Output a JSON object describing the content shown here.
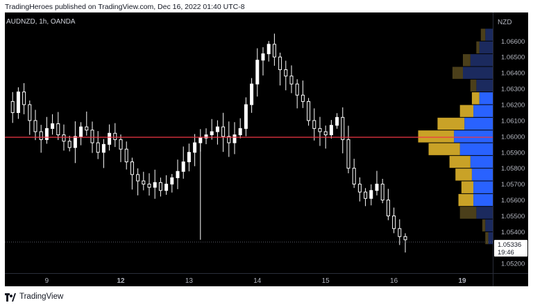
{
  "header": {
    "published": "TradingHeroes published on TradingView.com, Dec 16, 2022 01:40 UTC-8"
  },
  "chart_header": {
    "symbol": "AUDNZD, 1h, OANDA"
  },
  "footer": {
    "brand": "TradingView"
  },
  "colors": {
    "background": "#000000",
    "candle": "#ffffff",
    "price_line": "#f23645",
    "vp_up": "#2962ff",
    "vp_down": "#c9a227",
    "vp_up_outside": "#1b2a5e",
    "vp_down_outside": "#4b3f1a"
  },
  "chart_data": {
    "type": "candlestick",
    "title": "AUDNZD, 1h, OANDA",
    "xlabel": "",
    "ylabel": "NZD",
    "ylim": [
      1.0514,
      1.0678
    ],
    "y_ticks": [
      1.066,
      1.065,
      1.064,
      1.063,
      1.062,
      1.061,
      1.06,
      1.059,
      1.058,
      1.057,
      1.056,
      1.055,
      1.054,
      1.052
    ],
    "y_tick_labels": [
      "1.06600",
      "1.06500",
      "1.06400",
      "1.06300",
      "1.06200",
      "1.06100",
      "1.06000",
      "1.05900",
      "1.05800",
      "1.05700",
      "1.05600",
      "1.05500",
      "1.05400",
      "1.05200"
    ],
    "x_ticks": [
      {
        "label": "9",
        "bar": 7,
        "bold": false
      },
      {
        "label": "12",
        "bar": 20,
        "bold": true
      },
      {
        "label": "13",
        "bar": 32,
        "bold": false
      },
      {
        "label": "14",
        "bar": 44,
        "bold": false
      },
      {
        "label": "15",
        "bar": 56,
        "bold": false
      },
      {
        "label": "16",
        "bar": 68,
        "bold": false
      },
      {
        "label": "19",
        "bar": 80,
        "bold": true
      }
    ],
    "horizontal_line": 1.05995,
    "current_price": {
      "value": "1.05336",
      "countdown": "19:46"
    },
    "close_path": [
      1.0622,
      1.0615,
      1.0628,
      1.062,
      1.061,
      1.0603,
      1.0598,
      1.0605,
      1.0608,
      1.0601,
      1.0597,
      1.0593,
      1.06,
      1.0606,
      1.0604,
      1.0596,
      1.059,
      1.0595,
      1.0602,
      1.0598,
      1.0592,
      1.0584,
      1.0576,
      1.0572,
      1.057,
      1.0568,
      1.0571,
      1.0566,
      1.057,
      1.0574,
      1.0578,
      1.0584,
      1.059,
      1.0596,
      1.0599,
      1.0601,
      1.0603,
      1.0606,
      1.06,
      1.0596,
      1.0601,
      1.0605,
      1.062,
      1.0633,
      1.0648,
      1.0652,
      1.0658,
      1.065,
      1.0642,
      1.0638,
      1.0633,
      1.0626,
      1.0622,
      1.061,
      1.0605,
      1.0603,
      1.0601,
      1.0607,
      1.0612,
      1.0598,
      1.058,
      1.057,
      1.0565,
      1.0561,
      1.0566,
      1.057,
      1.056,
      1.055,
      1.0542,
      1.0537,
      1.0535
    ],
    "series": [
      {
        "name": "volume_profile",
        "type": "horizontal_bars",
        "price_bins": [
          1.0664,
          1.0656,
          1.0648,
          1.064,
          1.0632,
          1.0624,
          1.0616,
          1.0608,
          1.06,
          1.0592,
          1.0584,
          1.0576,
          1.0568,
          1.056,
          1.0552,
          1.0544,
          1.0536
        ],
        "up_volume": [
          5,
          9,
          15,
          20,
          11,
          9,
          13,
          19,
          26,
          22,
          15,
          14,
          13,
          13,
          11,
          5,
          3
        ],
        "down_volume": [
          3,
          2,
          5,
          7,
          4,
          5,
          9,
          18,
          24,
          21,
          14,
          11,
          8,
          10,
          11,
          2,
          2
        ],
        "value_area": [
          false,
          false,
          false,
          false,
          false,
          true,
          true,
          true,
          true,
          true,
          true,
          true,
          true,
          true,
          false,
          false,
          false
        ]
      }
    ]
  }
}
